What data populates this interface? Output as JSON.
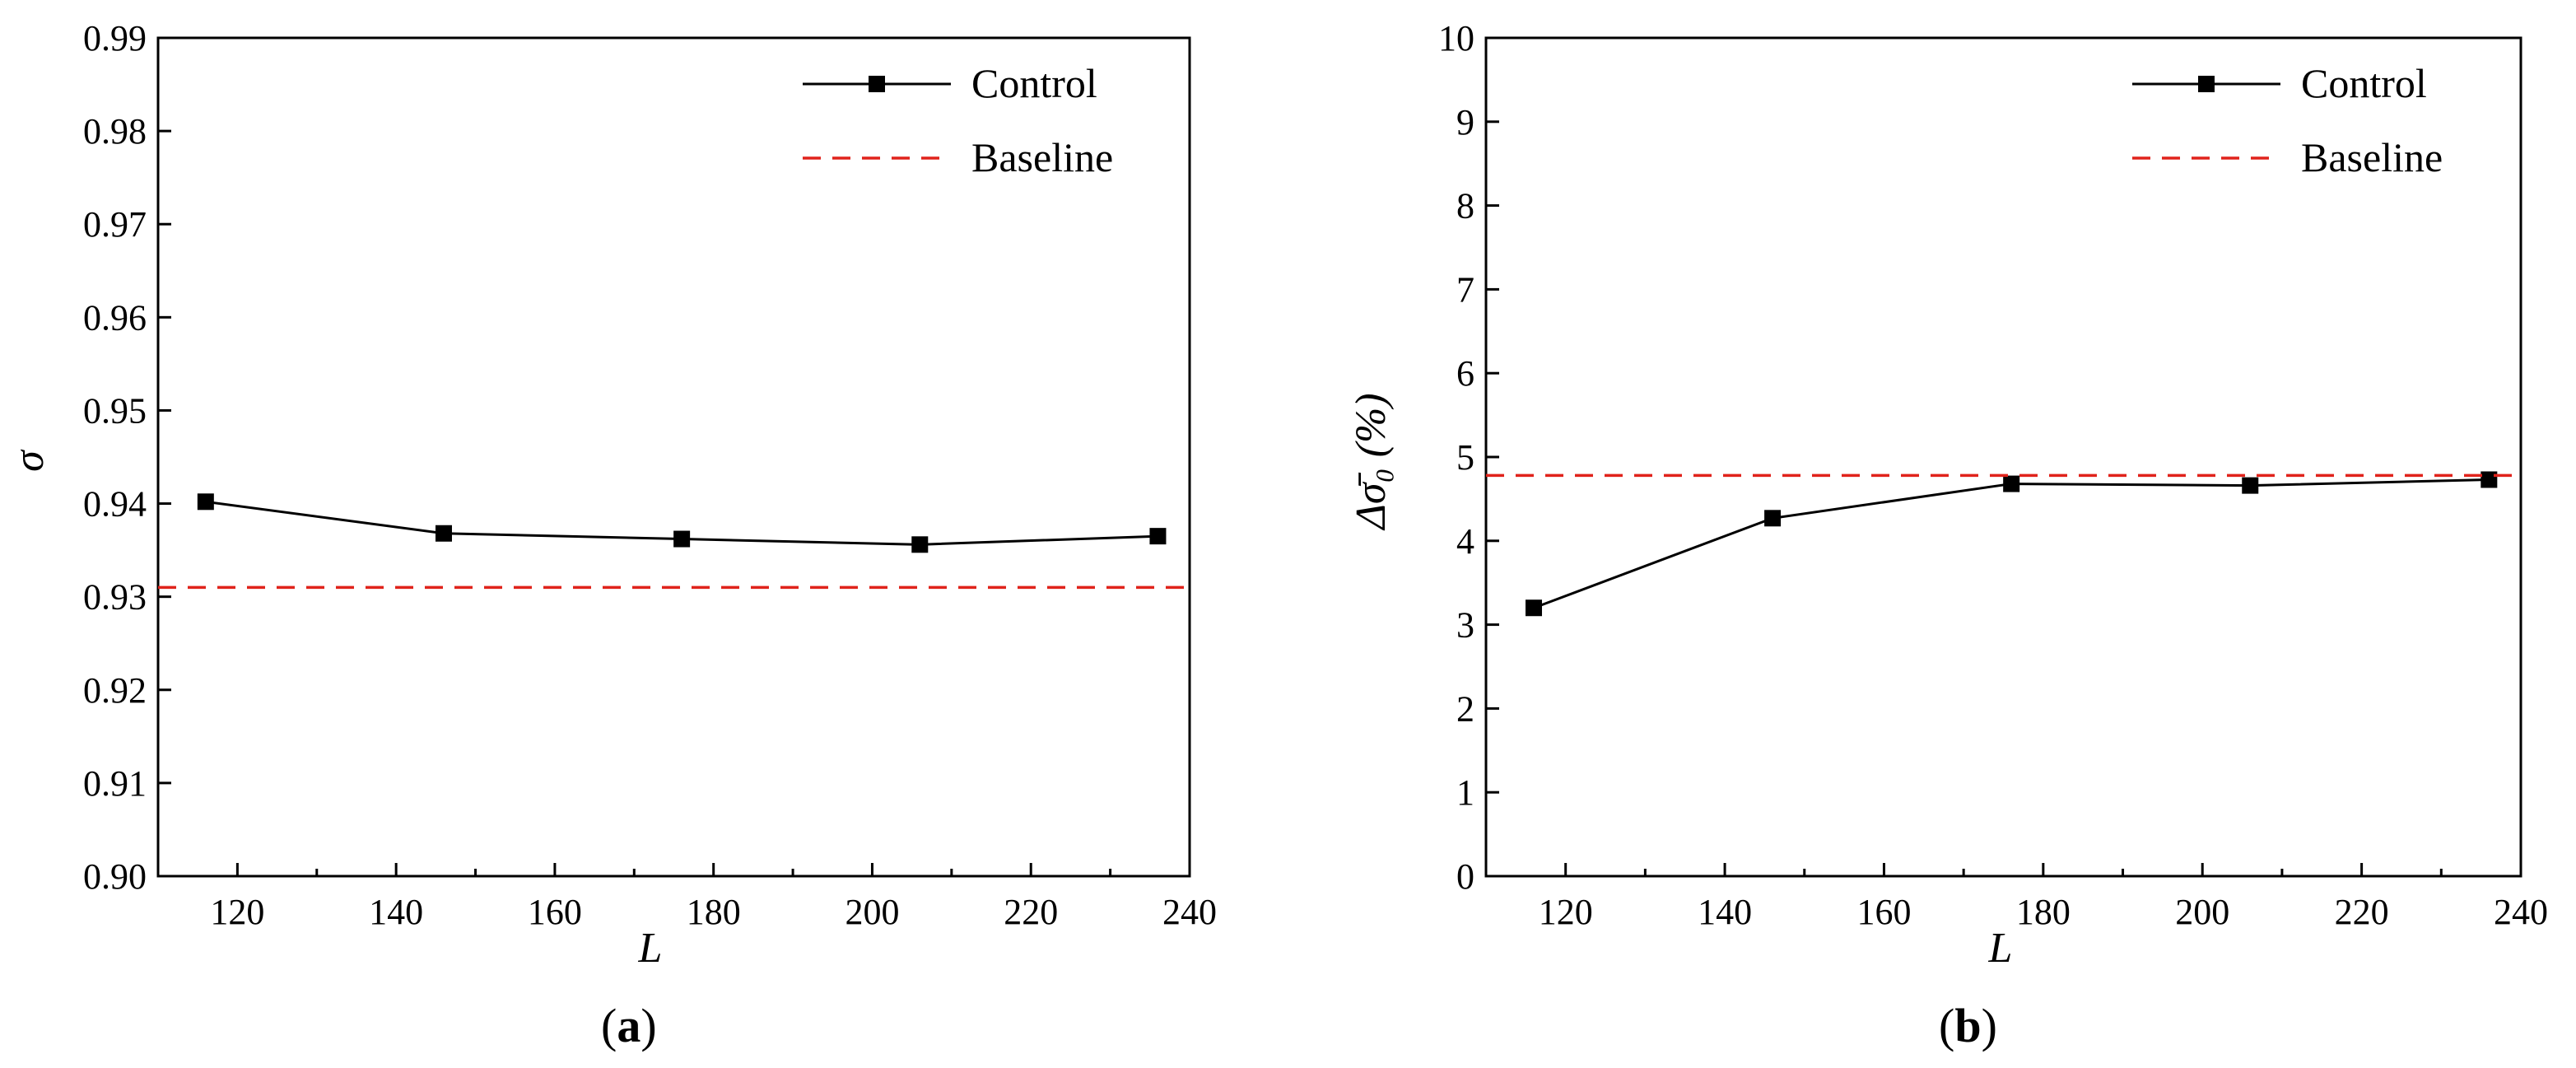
{
  "chart_data": [
    {
      "type": "line",
      "panel": "a",
      "panel_label_open": "(",
      "panel_label_letter": "a",
      "panel_label_close": ")",
      "xlabel": "L",
      "ylabel": "σ",
      "xlim": [
        110,
        240
      ],
      "ylim": [
        0.9,
        0.99
      ],
      "xticks": [
        120,
        140,
        160,
        180,
        200,
        220,
        240
      ],
      "yticks": [
        "0.90",
        "0.91",
        "0.92",
        "0.93",
        "0.94",
        "0.95",
        "0.96",
        "0.97",
        "0.98",
        "0.99"
      ],
      "series": [
        {
          "name": "Control",
          "style": "solid-square",
          "color": "#000000",
          "x": [
            116,
            146,
            176,
            206,
            236
          ],
          "y": [
            0.9402,
            0.9368,
            0.9362,
            0.9356,
            0.9365
          ]
        },
        {
          "name": "Baseline",
          "style": "dashed",
          "color": "#e0231b",
          "x": [
            110,
            240
          ],
          "y": [
            0.931,
            0.931
          ]
        }
      ],
      "legend": "top-right"
    },
    {
      "type": "line",
      "panel": "b",
      "panel_label_open": "(",
      "panel_label_letter": "b",
      "panel_label_close": ")",
      "xlabel": "L",
      "ylabel": "Δσ̄₀ (%)",
      "xlim": [
        110,
        240
      ],
      "ylim": [
        0,
        10
      ],
      "xticks": [
        120,
        140,
        160,
        180,
        200,
        220,
        240
      ],
      "yticks": [
        "0",
        "1",
        "2",
        "3",
        "4",
        "5",
        "6",
        "7",
        "8",
        "9",
        "10"
      ],
      "series": [
        {
          "name": "Control",
          "style": "solid-square",
          "color": "#000000",
          "x": [
            116,
            146,
            176,
            206,
            236
          ],
          "y": [
            3.2,
            4.27,
            4.68,
            4.66,
            4.73
          ]
        },
        {
          "name": "Baseline",
          "style": "dashed",
          "color": "#e0231b",
          "x": [
            110,
            240
          ],
          "y": [
            4.78,
            4.78
          ]
        }
      ],
      "legend": "top-right"
    }
  ]
}
